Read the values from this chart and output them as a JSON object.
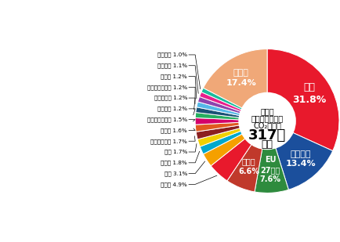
{
  "title_line1": "世界の",
  "title_line2": "エネルギー起源",
  "title_line3": "CO₂排出量",
  "title_value": "317億",
  "title_unit": "トン",
  "slices": [
    {
      "label": "中国",
      "pct": 31.8,
      "color": "#e8192c"
    },
    {
      "label": "アメリカ",
      "pct": 13.4,
      "color": "#1b4f9c"
    },
    {
      "label": "EU27カ国",
      "pct": 7.6,
      "color": "#2e8b3e"
    },
    {
      "label": "インド",
      "pct": 6.6,
      "color": "#c0392b"
    },
    {
      "label": "ロシア",
      "pct": 4.9,
      "color": "#e8192c"
    },
    {
      "label": "日本",
      "pct": 3.1,
      "color": "#f5a623"
    },
    {
      "label": "イラン",
      "pct": 1.8,
      "color": "#00a0c8"
    },
    {
      "label": "韓国",
      "pct": 1.7,
      "color": "#f0d000"
    },
    {
      "label": "インドネシア",
      "pct": 1.7,
      "color": "#964b00"
    },
    {
      "label": "カナダ",
      "pct": 1.6,
      "color": "#e05020"
    },
    {
      "label": "サウジアラビア",
      "pct": 1.5,
      "color": "#d4006a"
    },
    {
      "label": "ブラジル",
      "pct": 1.2,
      "color": "#27ae60"
    },
    {
      "label": "南アフリカ",
      "pct": 1.2,
      "color": "#006090"
    },
    {
      "label": "オーストラリア",
      "pct": 1.2,
      "color": "#55b8e0"
    },
    {
      "label": "トルコ",
      "pct": 1.2,
      "color": "#9b59b6"
    },
    {
      "label": "メキシコ",
      "pct": 1.1,
      "color": "#e91e8c"
    },
    {
      "label": "イギリス",
      "pct": 1.0,
      "color": "#1abc9c"
    },
    {
      "label": "その他",
      "pct": 17.4,
      "color": "#f0a878"
    }
  ],
  "left_annotations": [
    {
      "idx": 16,
      "label": "イギリス 1.0%"
    },
    {
      "idx": 15,
      "label": "メキシコ 1.1%"
    },
    {
      "idx": 14,
      "label": "トルコ 1.2%"
    },
    {
      "idx": 13,
      "label": "オーストラリア 1.2%"
    },
    {
      "idx": 12,
      "label": "南アフリカ 1.2%"
    },
    {
      "idx": 11,
      "label": "ブラジル 1.2%"
    },
    {
      "idx": 10,
      "label": "サウジアラビア 1.5%"
    },
    {
      "idx": 9,
      "label": "カナダ 1.6%"
    },
    {
      "idx": 8,
      "label": "インドネシア 1.7%"
    },
    {
      "idx": 7,
      "label": "韓国 1.7%"
    },
    {
      "idx": 6,
      "label": "イラン 1.8%"
    },
    {
      "idx": 5,
      "label": "日本 3.1%"
    },
    {
      "idx": 4,
      "label": "ロシア 4.9%"
    }
  ],
  "bg_color": "#ffffff"
}
